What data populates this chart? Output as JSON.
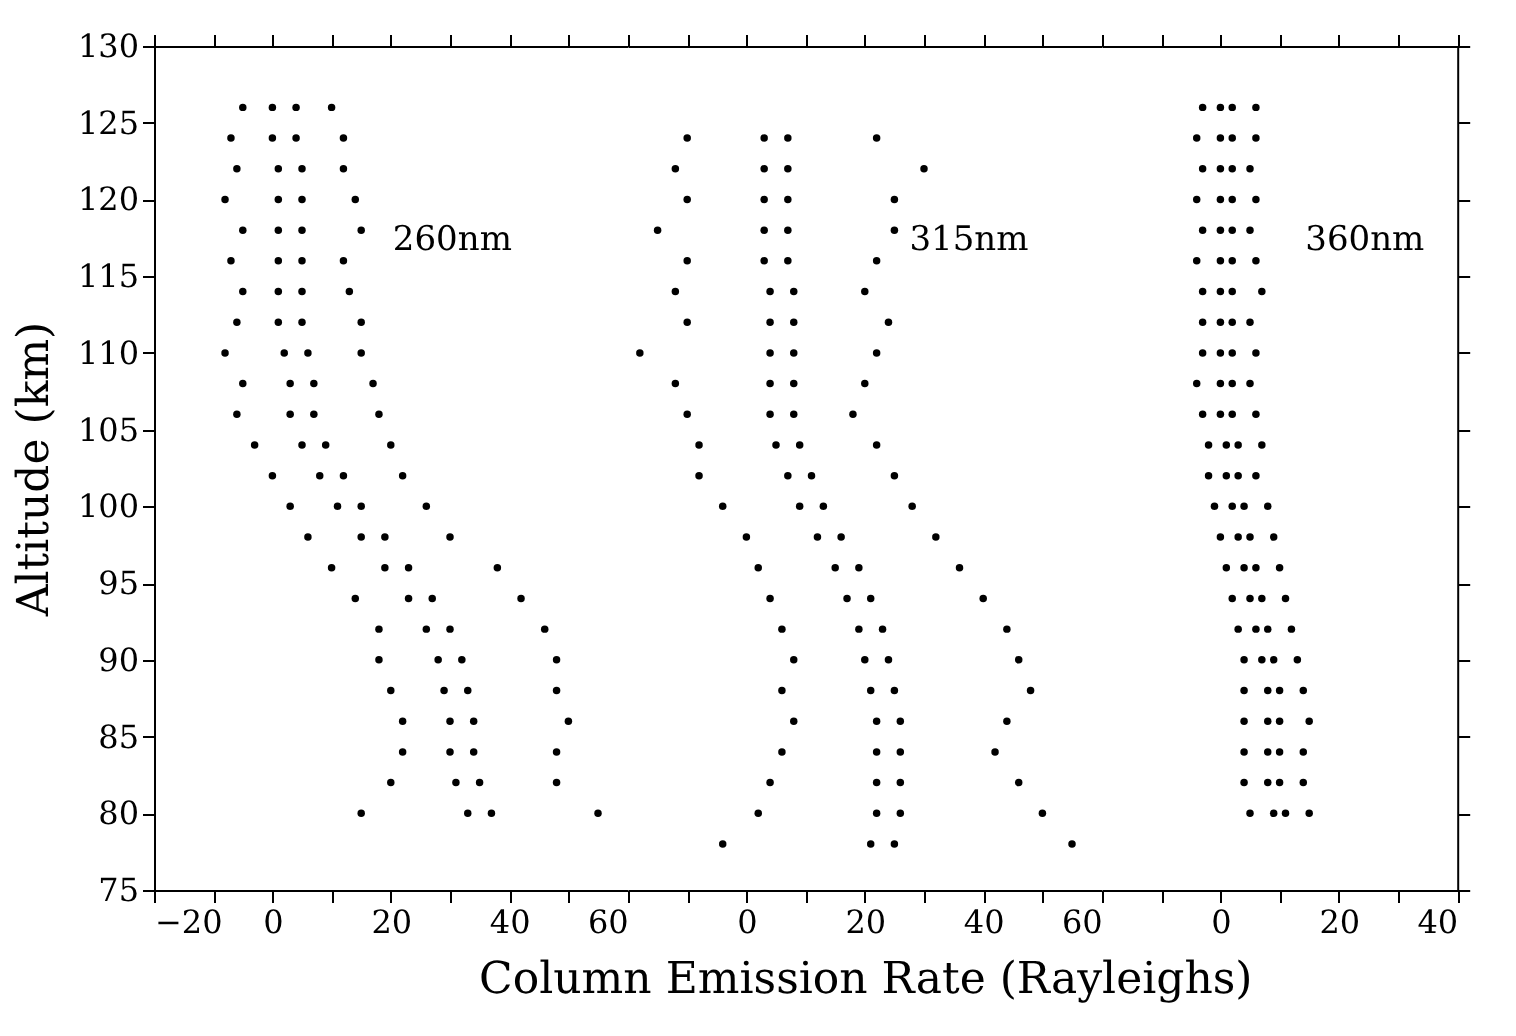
{
  "chart_data": [
    {
      "type": "scatter",
      "ylabel": "Altitude  (km)",
      "xlim": [
        -20,
        60
      ],
      "xticks": [
        -20,
        {
          "value": -10,
          "label": null
        },
        0,
        {
          "value": 10,
          "label": null
        },
        20,
        {
          "value": 30,
          "label": null
        },
        40,
        {
          "value": 50,
          "label": null
        },
        60
      ],
      "ylim": [
        75,
        130
      ],
      "yticks": [
        75,
        80,
        85,
        90,
        95,
        100,
        105,
        110,
        115,
        120,
        125,
        130
      ],
      "marker": "circle",
      "grid": false,
      "series": [
        {
          "name": "260nm",
          "color": "#000000",
          "x": [
            -5,
            0,
            4,
            10,
            -7,
            0,
            4,
            12,
            -6,
            1,
            5,
            12,
            -8,
            1,
            5,
            14,
            -5,
            1,
            5,
            15,
            -7,
            1,
            5,
            12,
            -5,
            1,
            5,
            13,
            -6,
            1,
            5,
            15,
            -8,
            2,
            6,
            15,
            -5,
            3,
            7,
            17,
            -6,
            3,
            7,
            18,
            -3,
            5,
            9,
            20,
            0,
            8,
            12,
            22,
            3,
            11,
            15,
            26,
            6,
            15,
            19,
            30,
            10,
            19,
            23,
            38,
            14,
            23,
            27,
            42,
            18,
            26,
            30,
            46,
            18,
            28,
            32,
            48,
            20,
            29,
            33,
            48,
            22,
            30,
            34,
            50,
            22,
            30,
            34,
            48,
            20,
            31,
            35,
            48,
            15,
            33,
            37,
            55
          ],
          "values": [
            126,
            126,
            126,
            126,
            124,
            124,
            124,
            124,
            122,
            122,
            122,
            122,
            120,
            120,
            120,
            120,
            118,
            118,
            118,
            118,
            116,
            116,
            116,
            116,
            114,
            114,
            114,
            114,
            112,
            112,
            112,
            112,
            110,
            110,
            110,
            110,
            108,
            108,
            108,
            108,
            106,
            106,
            106,
            106,
            104,
            104,
            104,
            104,
            102,
            102,
            102,
            102,
            100,
            100,
            100,
            100,
            98,
            98,
            98,
            98,
            96,
            96,
            96,
            96,
            94,
            94,
            94,
            94,
            92,
            92,
            92,
            92,
            90,
            90,
            90,
            90,
            88,
            88,
            88,
            88,
            86,
            86,
            86,
            86,
            84,
            84,
            84,
            84,
            82,
            82,
            82,
            82,
            80,
            80,
            80,
            80
          ]
        }
      ]
    },
    {
      "type": "scatter",
      "xlabel": "Column Emission Rate  (Rayleighs)",
      "xlim": [
        -20,
        60
      ],
      "xticks": [
        {
          "value": -10,
          "label": null
        },
        0,
        {
          "value": 10,
          "label": null
        },
        20,
        {
          "value": 30,
          "label": null
        },
        40,
        {
          "value": 50,
          "label": null
        },
        60
      ],
      "ylim": [
        75,
        130
      ],
      "yticks": [
        75,
        80,
        85,
        90,
        95,
        100,
        105,
        110,
        115,
        120,
        125,
        130
      ],
      "tick_labels": "x",
      "marker": "circle",
      "grid": false,
      "series": [
        {
          "name": "315nm",
          "color": "#000000",
          "x": [
            -10,
            3,
            7,
            22,
            -12,
            3,
            7,
            30,
            -10,
            3,
            7,
            25,
            -15,
            3,
            7,
            25,
            -10,
            3,
            7,
            22,
            -12,
            4,
            8,
            20,
            -10,
            4,
            8,
            24,
            -18,
            4,
            8,
            22,
            -12,
            4,
            8,
            20,
            -10,
            4,
            8,
            18,
            -8,
            5,
            9,
            22,
            -8,
            7,
            11,
            25,
            -4,
            9,
            13,
            28,
            0,
            12,
            16,
            32,
            2,
            15,
            19,
            36,
            4,
            17,
            21,
            40,
            6,
            19,
            23,
            44,
            8,
            20,
            24,
            46,
            6,
            21,
            25,
            48,
            8,
            22,
            26,
            44,
            6,
            22,
            26,
            42,
            4,
            22,
            26,
            46,
            2,
            22,
            26,
            50,
            -4,
            21,
            25,
            55
          ],
          "values": [
            124,
            124,
            124,
            124,
            122,
            122,
            122,
            122,
            120,
            120,
            120,
            120,
            118,
            118,
            118,
            118,
            116,
            116,
            116,
            116,
            114,
            114,
            114,
            114,
            112,
            112,
            112,
            112,
            110,
            110,
            110,
            110,
            108,
            108,
            108,
            108,
            106,
            106,
            106,
            106,
            104,
            104,
            104,
            104,
            102,
            102,
            102,
            102,
            100,
            100,
            100,
            100,
            98,
            98,
            98,
            98,
            96,
            96,
            96,
            96,
            94,
            94,
            94,
            94,
            92,
            92,
            92,
            92,
            90,
            90,
            90,
            90,
            88,
            88,
            88,
            88,
            86,
            86,
            86,
            86,
            84,
            84,
            84,
            84,
            82,
            82,
            82,
            82,
            80,
            80,
            80,
            80,
            78,
            78,
            78,
            78
          ]
        }
      ]
    },
    {
      "type": "scatter",
      "xlim": [
        -20,
        40
      ],
      "xticks": [
        {
          "value": -10,
          "label": null
        },
        0,
        {
          "value": 10,
          "label": null
        },
        20,
        {
          "value": 30,
          "label": null
        },
        40
      ],
      "ylim": [
        75,
        130
      ],
      "yticks": [
        75,
        80,
        85,
        90,
        95,
        100,
        105,
        110,
        115,
        120,
        125,
        130
      ],
      "tick_labels": "x",
      "marker": "circle",
      "grid": false,
      "series": [
        {
          "name": "360nm",
          "color": "#000000",
          "x": [
            -3,
            0,
            2,
            6,
            -4,
            0,
            2,
            6,
            -3,
            0,
            2,
            5,
            -4,
            0,
            2,
            6,
            -3,
            0,
            2,
            5,
            -4,
            0,
            2,
            6,
            -3,
            0,
            2,
            7,
            -3,
            0,
            2,
            5,
            -3,
            0,
            2,
            6,
            -4,
            0,
            2,
            5,
            -3,
            0,
            2,
            6,
            -2,
            1,
            3,
            7,
            -2,
            1,
            3,
            6,
            -1,
            2,
            4,
            8,
            0,
            3,
            5,
            9,
            1,
            4,
            6,
            10,
            2,
            5,
            7,
            11,
            3,
            6,
            8,
            12,
            4,
            7,
            9,
            13,
            4,
            8,
            10,
            14,
            4,
            8,
            10,
            15,
            4,
            8,
            10,
            14,
            4,
            8,
            10,
            14,
            5,
            9,
            11,
            15
          ],
          "values": [
            126,
            126,
            126,
            126,
            124,
            124,
            124,
            124,
            122,
            122,
            122,
            122,
            120,
            120,
            120,
            120,
            118,
            118,
            118,
            118,
            116,
            116,
            116,
            116,
            114,
            114,
            114,
            114,
            112,
            112,
            112,
            112,
            110,
            110,
            110,
            110,
            108,
            108,
            108,
            108,
            106,
            106,
            106,
            106,
            104,
            104,
            104,
            104,
            102,
            102,
            102,
            102,
            100,
            100,
            100,
            100,
            98,
            98,
            98,
            98,
            96,
            96,
            96,
            96,
            94,
            94,
            94,
            94,
            92,
            92,
            92,
            92,
            90,
            90,
            90,
            90,
            88,
            88,
            88,
            88,
            86,
            86,
            86,
            86,
            84,
            84,
            84,
            84,
            82,
            82,
            82,
            82,
            80,
            80,
            80,
            80
          ]
        }
      ]
    }
  ]
}
